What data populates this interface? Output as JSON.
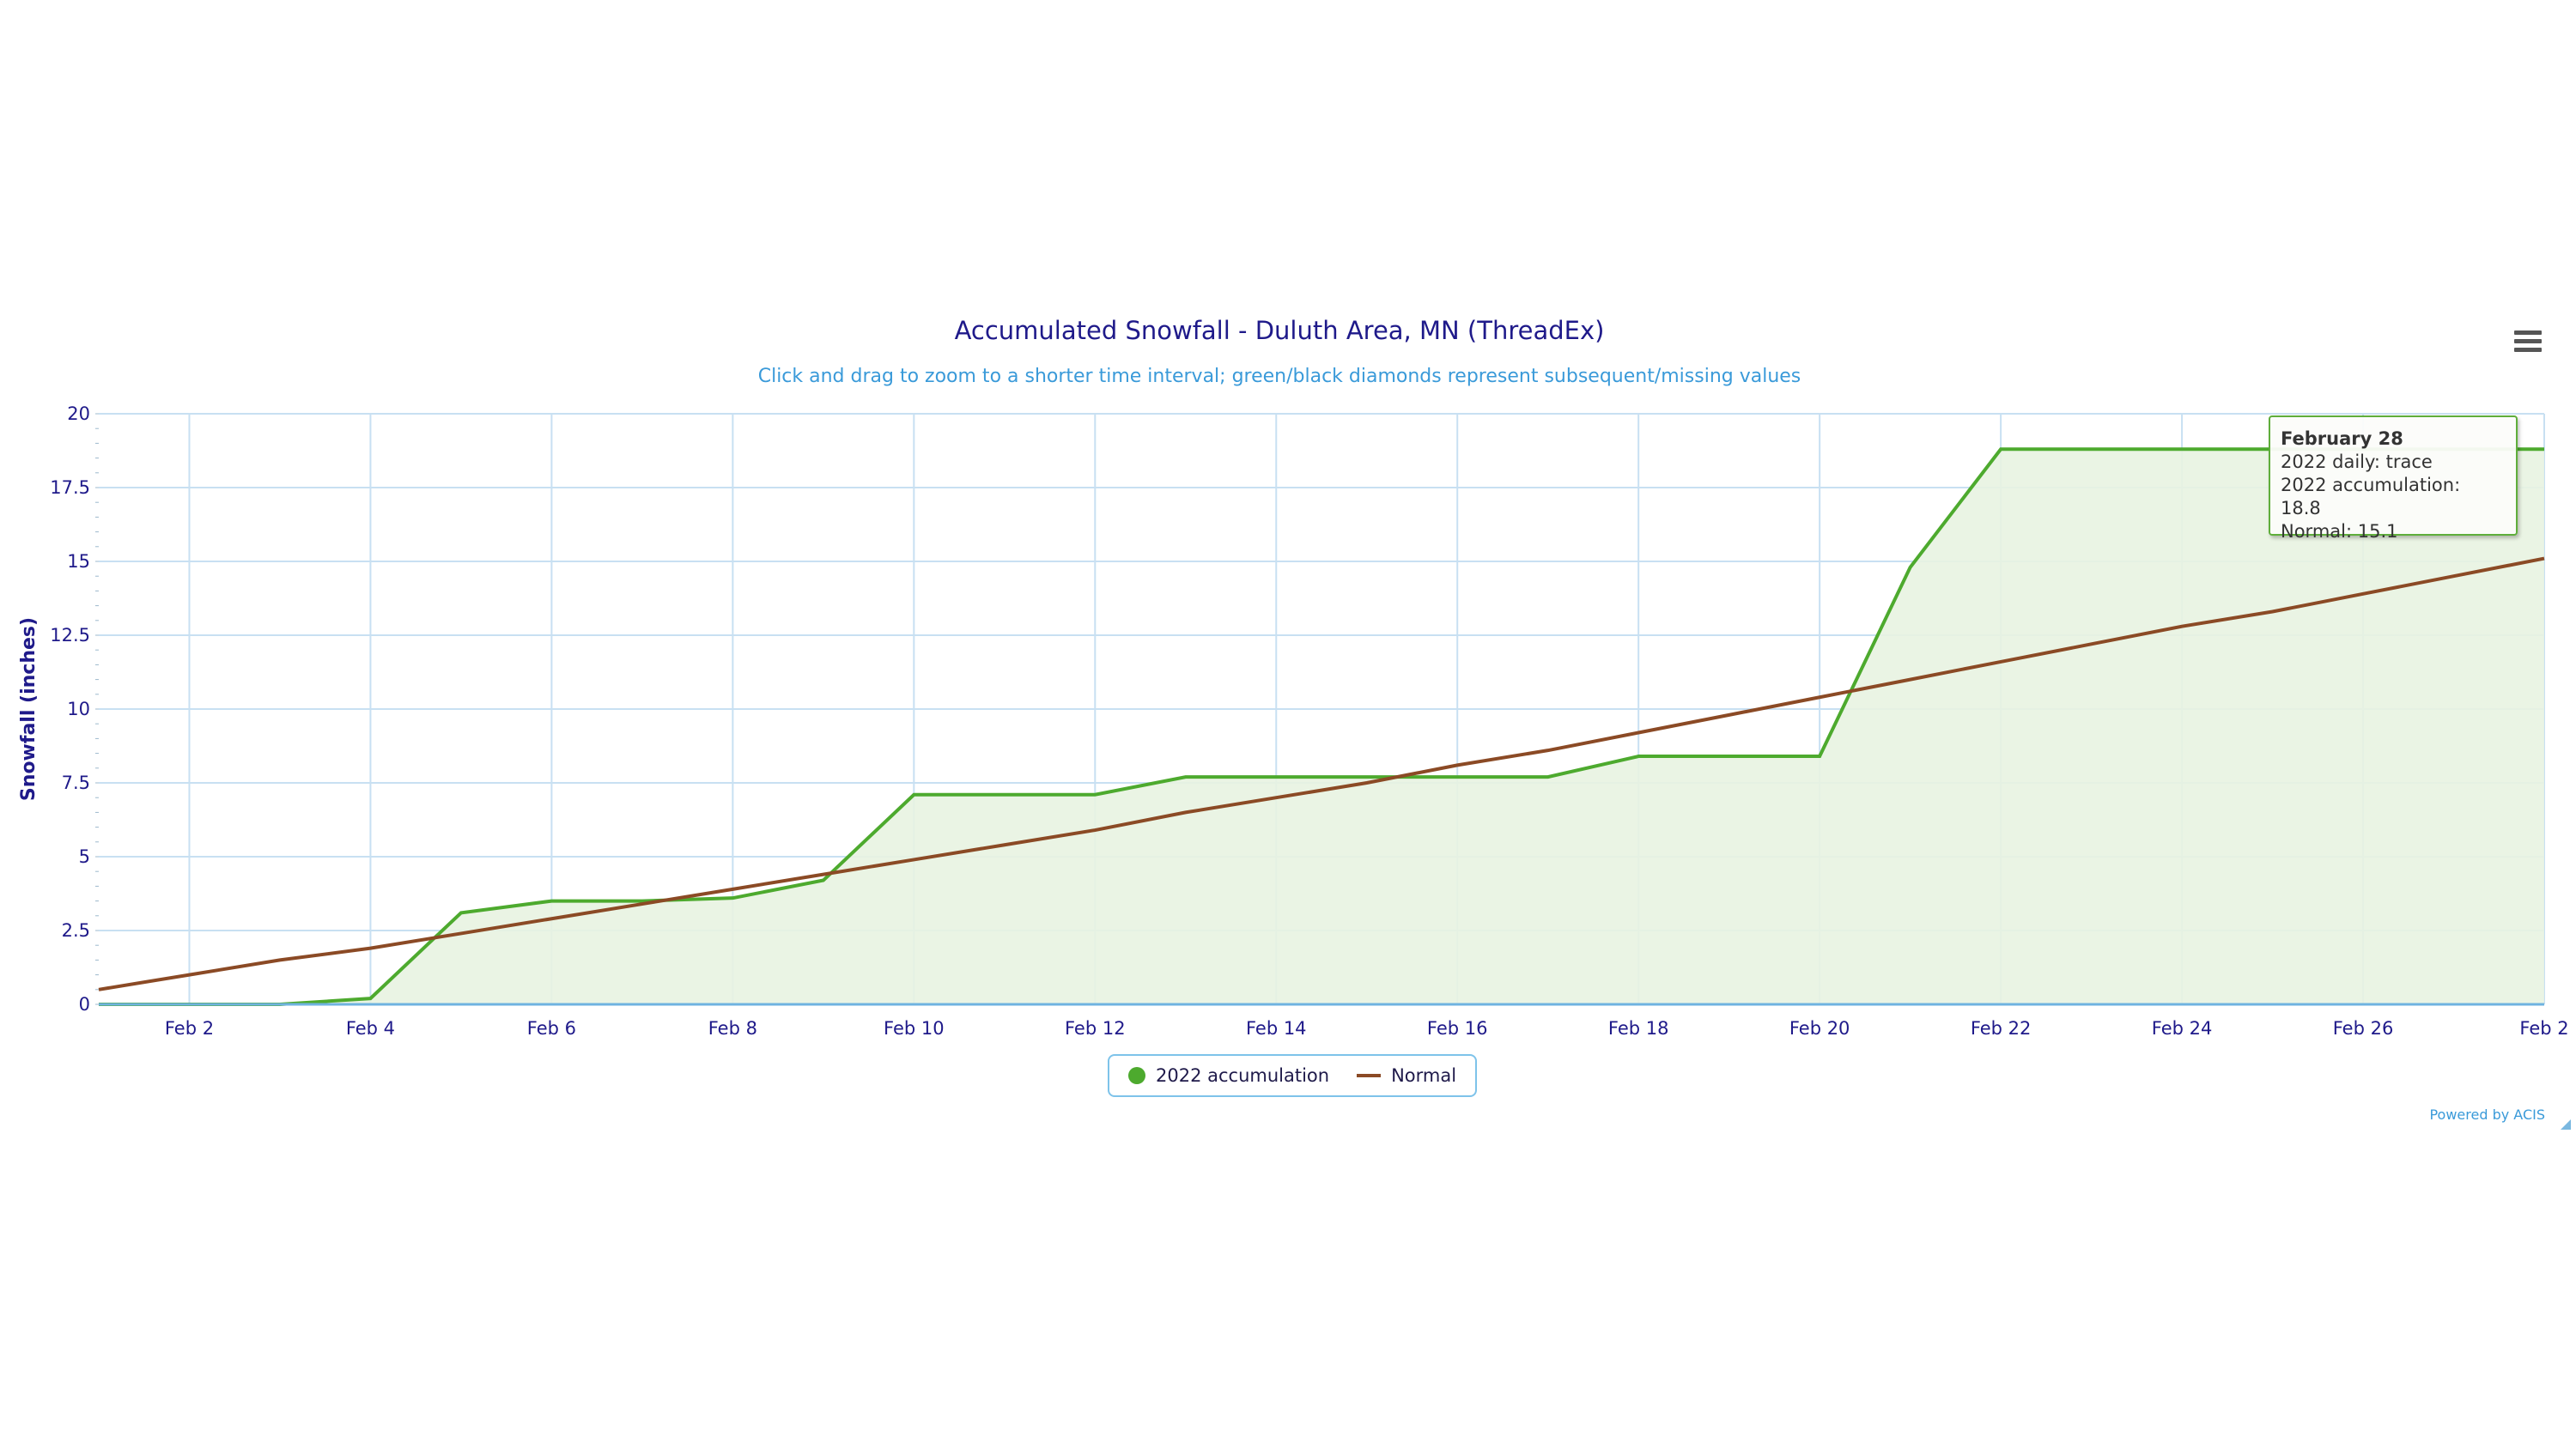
{
  "menu": {
    "icon": "hamburger-menu-icon"
  },
  "legend": {
    "items": [
      {
        "label": "2022 accumulation",
        "color": "#4daa2e",
        "symbol": "circle"
      },
      {
        "label": "Normal",
        "color": "#8b4a25",
        "symbol": "line"
      }
    ]
  },
  "credits": "Powered by ACIS",
  "tooltip": {
    "title": "February 28",
    "line1": "2022 daily: trace",
    "line2": "2022 accumulation: 18.8",
    "line3": "Normal: 15.1"
  },
  "colors": {
    "accumulation": "#4daa2e",
    "accumulation_fill": "#e8f3e1",
    "normal": "#8b4a25",
    "grid": "#c8e0f2",
    "axis_text": "#1f1a8a"
  },
  "chart_data": {
    "type": "area",
    "title": "Accumulated Snowfall - Duluth Area, MN (ThreadEx)",
    "subtitle": "Click and drag to zoom to a shorter time interval; green/black diamonds represent subsequent/missing values",
    "ylabel": "Snowfall (inches)",
    "xlabel": "",
    "ylim": [
      0,
      20
    ],
    "yticks": [
      "0",
      "2.5",
      "5",
      "7.5",
      "10",
      "12.5",
      "15",
      "17.5",
      "20"
    ],
    "xticks": [
      "Feb 2",
      "Feb 4",
      "Feb 6",
      "Feb 8",
      "Feb 10",
      "Feb 12",
      "Feb 14",
      "Feb 16",
      "Feb 18",
      "Feb 20",
      "Feb 22",
      "Feb 24",
      "Feb 26",
      "Feb 2"
    ],
    "x": [
      "Feb 1",
      "Feb 2",
      "Feb 3",
      "Feb 4",
      "Feb 5",
      "Feb 6",
      "Feb 7",
      "Feb 8",
      "Feb 9",
      "Feb 10",
      "Feb 11",
      "Feb 12",
      "Feb 13",
      "Feb 14",
      "Feb 15",
      "Feb 16",
      "Feb 17",
      "Feb 18",
      "Feb 19",
      "Feb 20",
      "Feb 21",
      "Feb 22",
      "Feb 23",
      "Feb 24",
      "Feb 25",
      "Feb 26",
      "Feb 27",
      "Feb 28"
    ],
    "grid": true,
    "legend_position": "bottom-center",
    "series": [
      {
        "name": "2022 accumulation",
        "type": "area",
        "values": [
          0,
          0,
          0,
          0.2,
          3.1,
          3.5,
          3.5,
          3.6,
          4.2,
          7.1,
          7.1,
          7.1,
          7.7,
          7.7,
          7.7,
          7.7,
          7.7,
          8.4,
          8.4,
          8.4,
          14.8,
          18.8,
          18.8,
          18.8,
          18.8,
          18.8,
          18.8,
          18.8
        ]
      },
      {
        "name": "Normal",
        "type": "line",
        "values": [
          0.5,
          1.0,
          1.5,
          1.9,
          2.4,
          2.9,
          3.4,
          3.9,
          4.4,
          4.9,
          5.4,
          5.9,
          6.5,
          7.0,
          7.5,
          8.1,
          8.6,
          9.2,
          9.8,
          10.4,
          11.0,
          11.6,
          12.2,
          12.8,
          13.3,
          13.9,
          14.5,
          15.1
        ]
      }
    ]
  }
}
